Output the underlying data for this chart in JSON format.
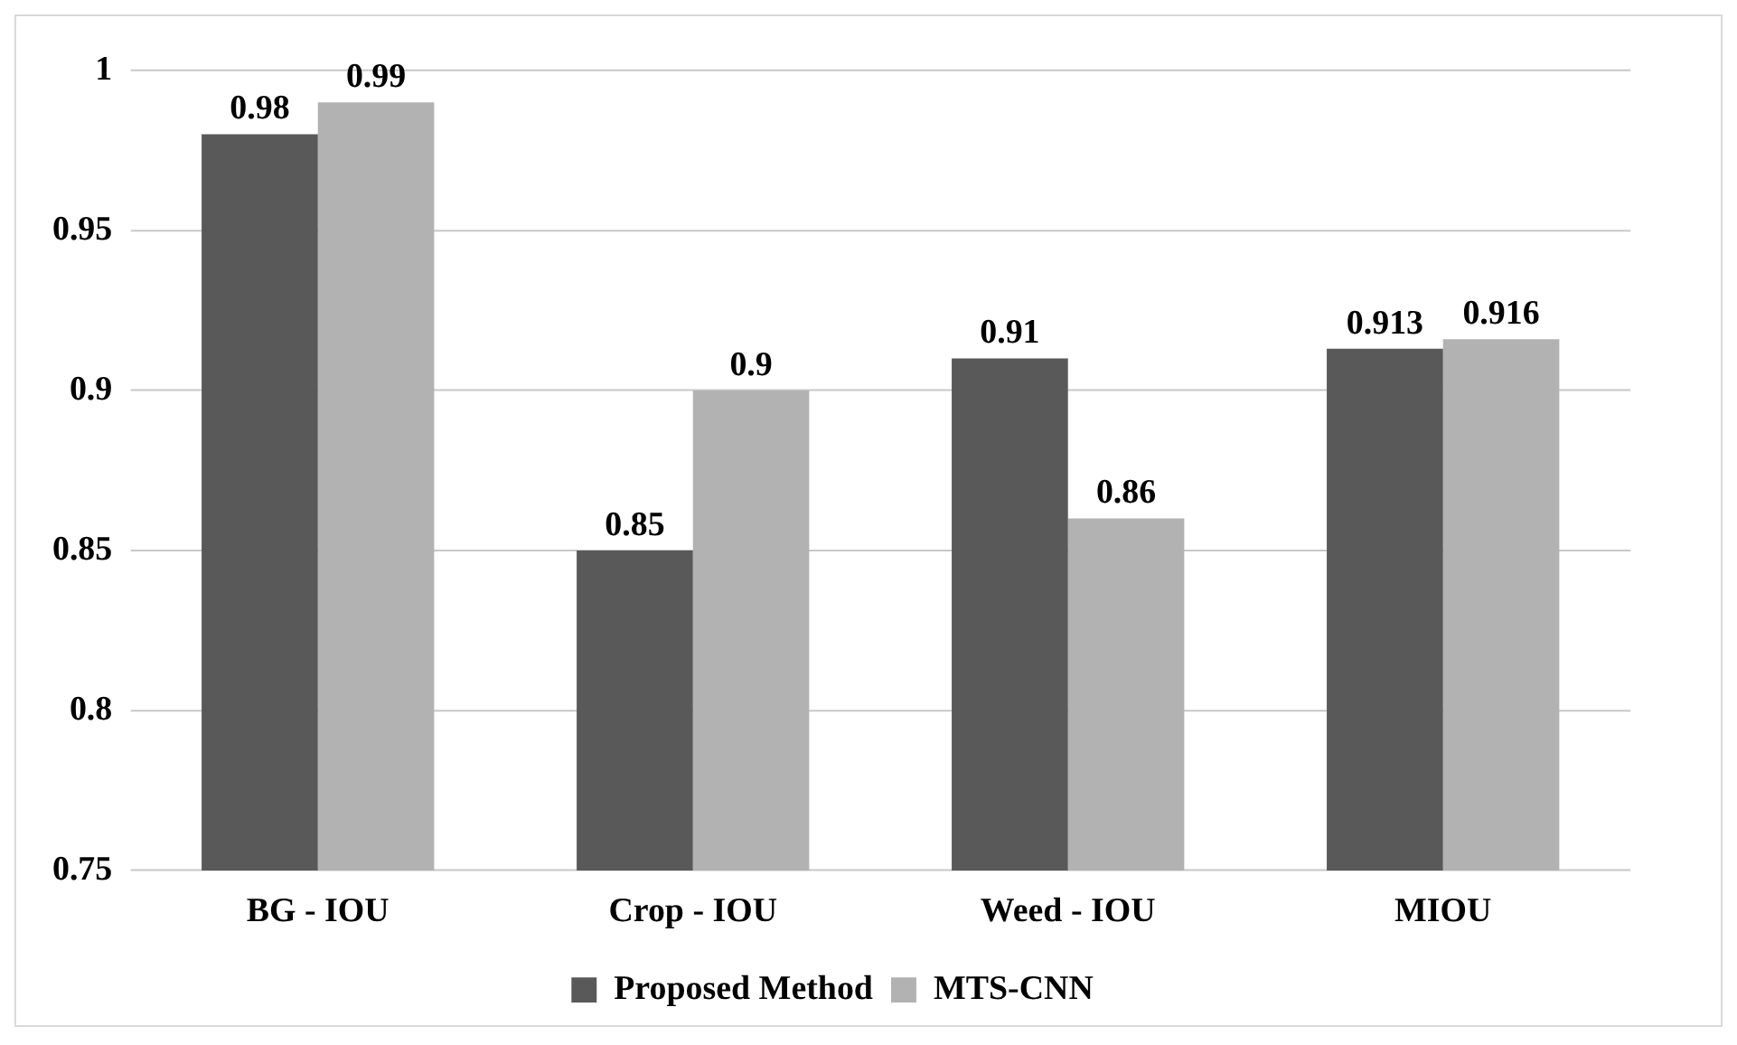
{
  "chart_data": {
    "type": "bar",
    "categories": [
      "BG - IOU",
      "Crop - IOU",
      "Weed - IOU",
      "MIOU"
    ],
    "series": [
      {
        "name": "Proposed Method",
        "color": "#595959",
        "values": [
          0.98,
          0.85,
          0.91,
          0.913
        ]
      },
      {
        "name": "MTS-CNN",
        "color": "#b2b2b2",
        "values": [
          0.99,
          0.9,
          0.86,
          0.916
        ]
      }
    ],
    "ylim": [
      0.75,
      1
    ],
    "yticks": [
      0.75,
      0.8,
      0.85,
      0.9,
      0.95,
      1
    ],
    "grid": "y",
    "legend": "bottom",
    "data_labels": true
  }
}
